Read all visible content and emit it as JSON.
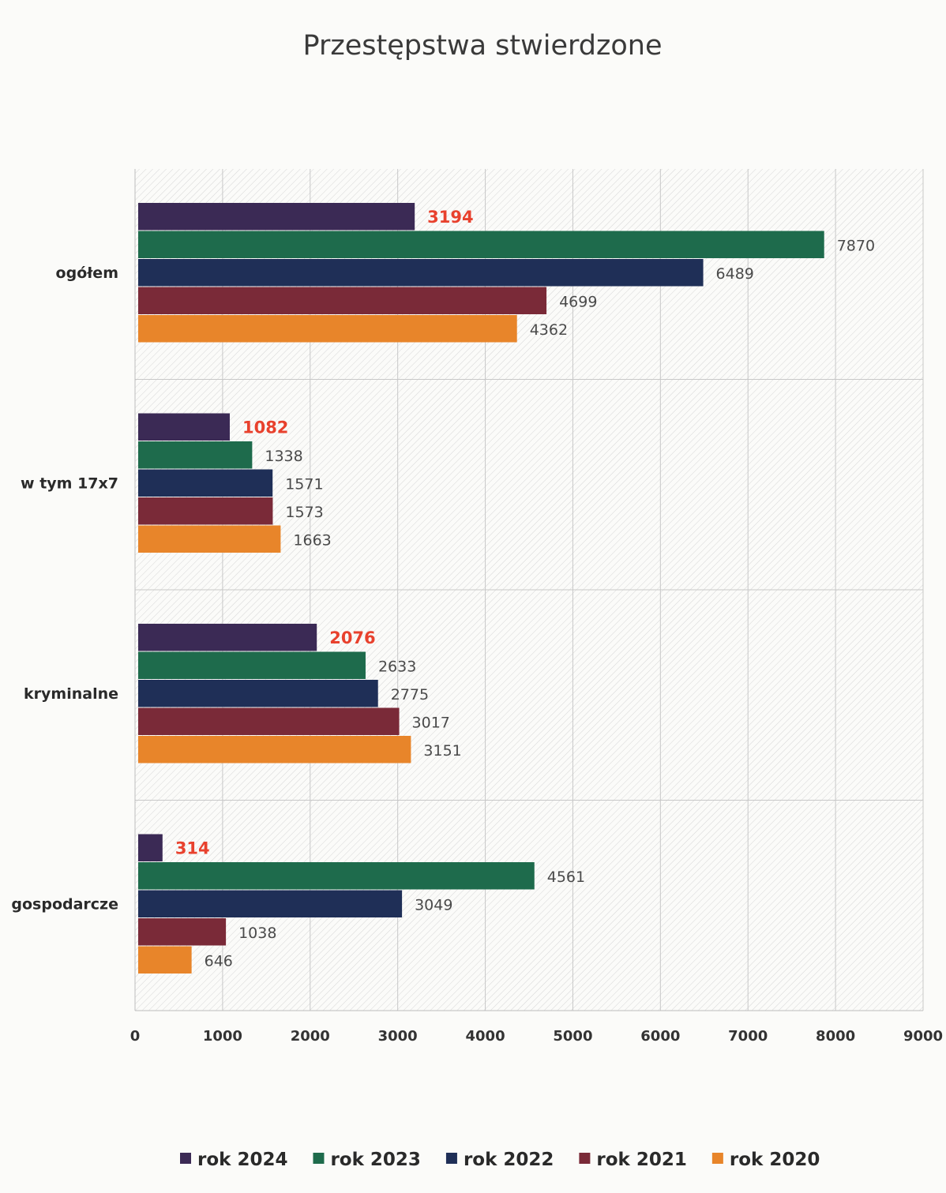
{
  "chart_data": {
    "type": "bar",
    "orientation": "horizontal",
    "title": "Przestępstwa stwierdzone",
    "categories": [
      "ogółem",
      "w tym 17x7",
      "kryminalne",
      "gospodarcze"
    ],
    "series": [
      {
        "name": "rok 2024",
        "color": "#3b2a55",
        "values": [
          3194,
          1082,
          2076,
          314
        ],
        "highlight": true
      },
      {
        "name": "rok 2023",
        "color": "#1e6b4c",
        "values": [
          7870,
          1338,
          2633,
          4561
        ]
      },
      {
        "name": "rok 2022",
        "color": "#1f2f57",
        "values": [
          6489,
          1571,
          2775,
          3049
        ]
      },
      {
        "name": "rok 2021",
        "color": "#7a2a38",
        "values": [
          4699,
          1573,
          3017,
          1038
        ]
      },
      {
        "name": "rok 2020",
        "color": "#e8852a",
        "values": [
          4362,
          1663,
          3151,
          646
        ]
      }
    ],
    "xlim": [
      0,
      9000
    ],
    "xticks": [
      0,
      1000,
      2000,
      3000,
      4000,
      5000,
      6000,
      7000,
      8000,
      9000
    ],
    "grid": true,
    "legend_position": "bottom",
    "highlight_color": "#e8412d"
  }
}
